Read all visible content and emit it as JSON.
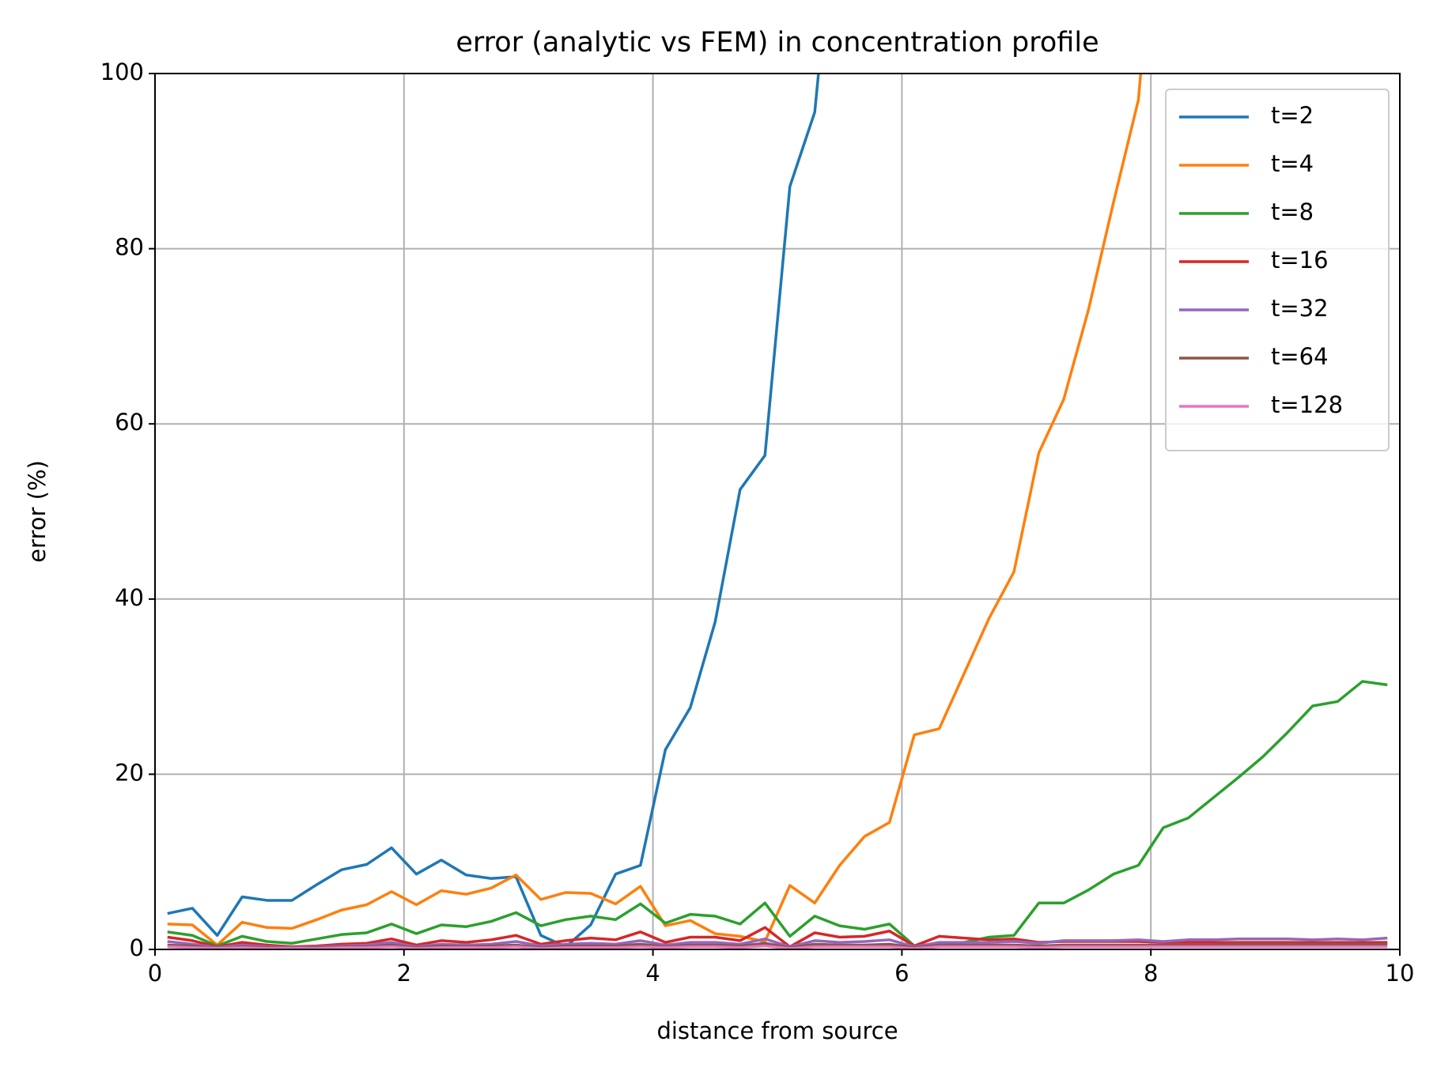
{
  "chart_data": {
    "type": "line",
    "title": "error (analytic vs FEM) in concentration profile",
    "xlabel": "distance from source",
    "ylabel": "error (%)",
    "x": [
      0.1,
      0.3,
      0.5,
      0.7,
      0.9,
      1.1,
      1.3,
      1.5,
      1.7,
      1.9,
      2.1,
      2.3,
      2.5,
      2.7,
      2.9,
      3.1,
      3.3,
      3.5,
      3.7,
      3.9,
      4.1,
      4.3,
      4.5,
      4.7,
      4.9,
      5.1,
      5.3,
      5.5,
      5.7,
      5.9,
      6.1,
      6.3,
      6.5,
      6.7,
      6.9,
      7.1,
      7.3,
      7.5,
      7.7,
      7.9,
      8.1,
      8.3,
      8.5,
      8.7,
      8.9,
      9.1,
      9.3,
      9.5,
      9.7,
      9.9
    ],
    "series": [
      {
        "name": "t=2",
        "color": "#1f77b4",
        "values": [
          4.1,
          4.7,
          1.6,
          6.0,
          5.6,
          5.6,
          7.4,
          9.1,
          9.7,
          11.6,
          8.6,
          10.2,
          8.5,
          8.1,
          8.3,
          1.6,
          0.3,
          2.8,
          8.6,
          9.6,
          22.8,
          27.6,
          37.4,
          52.5,
          56.4,
          87.1,
          95.6,
          125,
          null,
          null,
          null,
          null,
          null,
          null,
          null,
          null,
          null,
          null,
          null,
          null,
          null,
          null,
          null,
          null,
          null,
          null,
          null,
          null,
          null,
          null
        ]
      },
      {
        "name": "t=4",
        "color": "#ff7f0e",
        "values": [
          2.9,
          2.8,
          0.5,
          3.1,
          2.5,
          2.4,
          3.4,
          4.5,
          5.1,
          6.6,
          5.1,
          6.7,
          6.3,
          7.0,
          8.5,
          5.7,
          6.5,
          6.4,
          5.2,
          7.2,
          2.7,
          3.3,
          1.8,
          1.5,
          0.9,
          7.3,
          5.3,
          9.6,
          12.9,
          14.5,
          24.5,
          25.2,
          31.5,
          37.8,
          43.1,
          56.7,
          62.8,
          73.1,
          85.3,
          97.0,
          130,
          null,
          null,
          null,
          null,
          null,
          null,
          null,
          null,
          null
        ]
      },
      {
        "name": "t=8",
        "color": "#2ca02c",
        "values": [
          2.0,
          1.6,
          0.4,
          1.5,
          0.9,
          0.7,
          1.2,
          1.7,
          1.9,
          2.9,
          1.8,
          2.8,
          2.6,
          3.2,
          4.2,
          2.7,
          3.4,
          3.8,
          3.4,
          5.2,
          3.0,
          4.0,
          3.8,
          2.9,
          5.3,
          1.5,
          3.8,
          2.7,
          2.3,
          2.9,
          0.4,
          0.5,
          0.8,
          1.4,
          1.6,
          5.3,
          5.3,
          6.8,
          8.6,
          9.6,
          13.9,
          15.0,
          17.3,
          19.6,
          22.0,
          24.8,
          27.8,
          28.3,
          30.6,
          30.2
        ]
      },
      {
        "name": "t=16",
        "color": "#d62728",
        "values": [
          1.4,
          1.0,
          0.3,
          0.8,
          0.5,
          0.3,
          0.4,
          0.6,
          0.7,
          1.2,
          0.5,
          1.0,
          0.8,
          1.1,
          1.6,
          0.6,
          1.0,
          1.3,
          1.1,
          2.0,
          0.8,
          1.4,
          1.4,
          1.0,
          2.5,
          0.3,
          1.9,
          1.4,
          1.5,
          2.1,
          0.4,
          1.5,
          1.3,
          1.1,
          1.2,
          0.8,
          0.9,
          0.9,
          0.9,
          0.9,
          0.8,
          0.8,
          0.8,
          0.8,
          0.8,
          0.8,
          0.8,
          0.8,
          0.8,
          0.8
        ]
      },
      {
        "name": "t=32",
        "color": "#9467bd",
        "values": [
          0.9,
          0.6,
          0.2,
          0.5,
          0.3,
          0.2,
          0.3,
          0.4,
          0.5,
          0.8,
          0.3,
          0.6,
          0.5,
          0.6,
          0.9,
          0.4,
          0.6,
          0.7,
          0.6,
          1.0,
          0.5,
          0.8,
          0.8,
          0.6,
          1.2,
          0.3,
          1.0,
          0.8,
          0.9,
          1.1,
          0.3,
          0.8,
          0.8,
          0.8,
          0.9,
          0.7,
          1.0,
          1.0,
          1.0,
          1.1,
          0.9,
          1.1,
          1.1,
          1.2,
          1.2,
          1.2,
          1.1,
          1.2,
          1.1,
          1.3
        ]
      },
      {
        "name": "t=64",
        "color": "#8c564b",
        "values": [
          0.5,
          0.4,
          0.1,
          0.3,
          0.2,
          0.1,
          0.2,
          0.3,
          0.3,
          0.5,
          0.2,
          0.4,
          0.3,
          0.4,
          0.5,
          0.2,
          0.4,
          0.4,
          0.4,
          0.6,
          0.3,
          0.5,
          0.5,
          0.4,
          0.7,
          0.2,
          0.6,
          0.5,
          0.5,
          0.6,
          0.2,
          0.5,
          0.5,
          0.5,
          0.5,
          0.4,
          0.5,
          0.5,
          0.5,
          0.5,
          0.5,
          0.5,
          0.5,
          0.6,
          0.6,
          0.6,
          0.6,
          0.6,
          0.6,
          0.6
        ]
      },
      {
        "name": "t=128",
        "color": "#e377c2",
        "values": [
          0.3,
          0.2,
          0.1,
          0.2,
          0.1,
          0.1,
          0.1,
          0.2,
          0.2,
          0.3,
          0.1,
          0.2,
          0.2,
          0.2,
          0.3,
          0.1,
          0.2,
          0.2,
          0.2,
          0.3,
          0.2,
          0.3,
          0.3,
          0.2,
          0.4,
          0.1,
          0.3,
          0.3,
          0.3,
          0.3,
          0.1,
          0.3,
          0.3,
          0.3,
          0.3,
          0.2,
          0.3,
          0.3,
          0.3,
          0.3,
          0.3,
          0.3,
          0.3,
          0.3,
          0.3,
          0.3,
          0.3,
          0.3,
          0.3,
          0.3
        ]
      }
    ],
    "xlim": [
      0,
      10
    ],
    "xticks": [
      0,
      2,
      4,
      6,
      8,
      10
    ],
    "ylim": [
      0,
      100
    ],
    "yticks": [
      0,
      20,
      40,
      60,
      80,
      100
    ],
    "grid": true,
    "legend": "upper right"
  }
}
